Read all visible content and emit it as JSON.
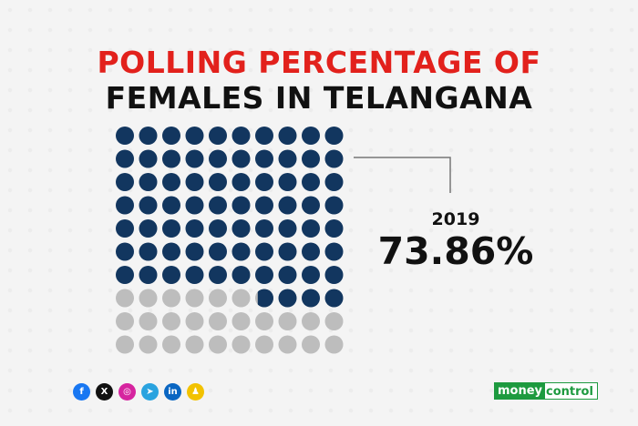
{
  "title_line1": "POLLING PERCENTAGE OF",
  "title_line2": "FEMALES IN TELANGANA",
  "chart_data": {
    "type": "waffle",
    "total_cells": 100,
    "filled_cells": 73.86,
    "series": [
      {
        "name": "2019",
        "value": 73.86,
        "label": "73.86%"
      }
    ],
    "filled_color": "#12365f",
    "empty_color": "#bdbdbd"
  },
  "socials": [
    {
      "icon": "facebook-icon",
      "glyph": "f",
      "color": "#1877f2"
    },
    {
      "icon": "x-icon",
      "glyph": "X",
      "color": "#111111"
    },
    {
      "icon": "instagram-icon",
      "glyph": "◎",
      "color": "#d6249f"
    },
    {
      "icon": "telegram-icon",
      "glyph": "➤",
      "color": "#2aa3df"
    },
    {
      "icon": "linkedin-icon",
      "glyph": "in",
      "color": "#0a66c2"
    },
    {
      "icon": "snapchat-icon",
      "glyph": "♟",
      "color": "#f2c200"
    }
  ],
  "brand": {
    "part1": "money",
    "part2": "control",
    "color": "#1d9a3f"
  }
}
